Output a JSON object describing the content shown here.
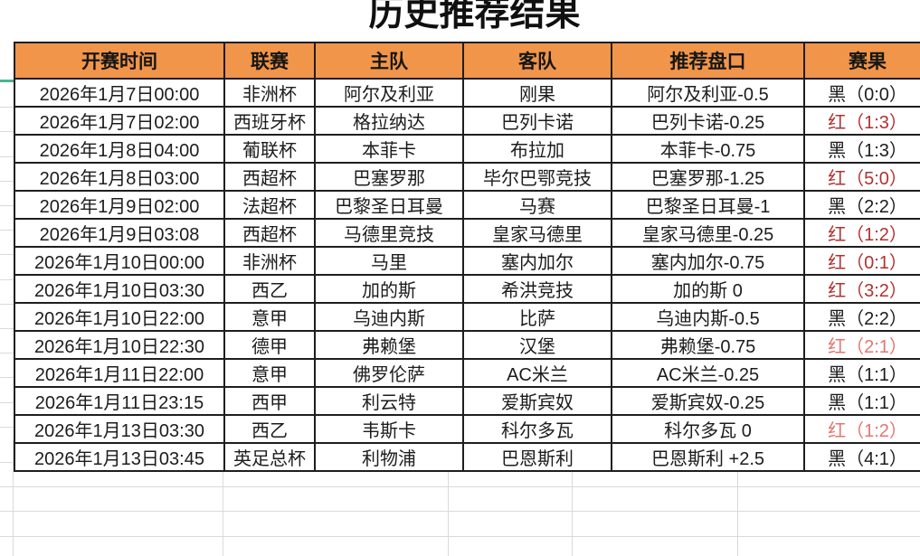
{
  "title": "历史推荐结果",
  "table": {
    "columns": [
      "开赛时间",
      "联赛",
      "主队",
      "客队",
      "推荐盘口",
      "赛果"
    ],
    "rows": [
      {
        "time": "2026年1月7日00:00",
        "league": "非洲杯",
        "home": "阿尔及利亚",
        "away": "刚果",
        "handicap": "阿尔及利亚-0.5",
        "result": "黑（0:0）",
        "tone": "black"
      },
      {
        "time": "2026年1月7日02:00",
        "league": "西班牙杯",
        "home": "格拉纳达",
        "away": "巴列卡诺",
        "handicap": "巴列卡诺-0.25",
        "result": "红（1:3）",
        "tone": "red"
      },
      {
        "time": "2026年1月8日04:00",
        "league": "葡联杯",
        "home": "本菲卡",
        "away": "布拉加",
        "handicap": "本菲卡-0.75",
        "result": "黑（1:3）",
        "tone": "black"
      },
      {
        "time": "2026年1月8日03:00",
        "league": "西超杯",
        "home": "巴塞罗那",
        "away": "毕尔巴鄂竞技",
        "handicap": "巴塞罗那-1.25",
        "result": "红（5:0）",
        "tone": "red"
      },
      {
        "time": "2026年1月9日02:00",
        "league": "法超杯",
        "home": "巴黎圣日耳曼",
        "away": "马赛",
        "handicap": "巴黎圣日耳曼-1",
        "result": "黑（2:2）",
        "tone": "black"
      },
      {
        "time": "2026年1月9日03:08",
        "league": "西超杯",
        "home": "马德里竞技",
        "away": "皇家马德里",
        "handicap": "皇家马德里-0.25",
        "result": "红（1:2）",
        "tone": "red"
      },
      {
        "time": "2026年1月10日00:00",
        "league": "非洲杯",
        "home": "马里",
        "away": "塞内加尔",
        "handicap": "塞内加尔-0.75",
        "result": "红（0:1）",
        "tone": "red"
      },
      {
        "time": "2026年1月10日03:30",
        "league": "西乙",
        "home": "加的斯",
        "away": "希洪竞技",
        "handicap": "加的斯 0",
        "result": "红（3:2）",
        "tone": "red"
      },
      {
        "time": "2026年1月10日22:00",
        "league": "意甲",
        "home": "乌迪内斯",
        "away": "比萨",
        "handicap": "乌迪内斯-0.5",
        "result": "黑（2:2）",
        "tone": "black"
      },
      {
        "time": "2026年1月10日22:30",
        "league": "德甲",
        "home": "弗赖堡",
        "away": "汉堡",
        "handicap": "弗赖堡-0.75",
        "result": "红（2:1）",
        "tone": "lightred"
      },
      {
        "time": "2026年1月11日22:00",
        "league": "意甲",
        "home": "佛罗伦萨",
        "away": "AC米兰",
        "handicap": "AC米兰-0.25",
        "result": "黑（1:1）",
        "tone": "black"
      },
      {
        "time": "2026年1月11日23:15",
        "league": "西甲",
        "home": "利云特",
        "away": "爱斯宾奴",
        "handicap": "爱斯宾奴-0.25",
        "result": "黑（1:1）",
        "tone": "black"
      },
      {
        "time": "2026年1月13日03:30",
        "league": "西乙",
        "home": "韦斯卡",
        "away": "科尔多瓦",
        "handicap": "科尔多瓦 0",
        "result": "红（1:2）",
        "tone": "lightred"
      },
      {
        "time": "2026年1月13日03:45",
        "league": "英足总杯",
        "home": "利物浦",
        "away": "巴恩斯利",
        "handicap": "巴恩斯利 +2.5",
        "result": "黑（4:1）",
        "tone": "black"
      }
    ]
  },
  "colors": {
    "header-bg": "#F0954A",
    "border-black": "#1E1E1E",
    "text-black": "#1C1C1C",
    "red-dark": "#B03230",
    "red-light": "#E4756F",
    "accent-teal": "#4CB394",
    "grid-line": "#DADADA"
  }
}
